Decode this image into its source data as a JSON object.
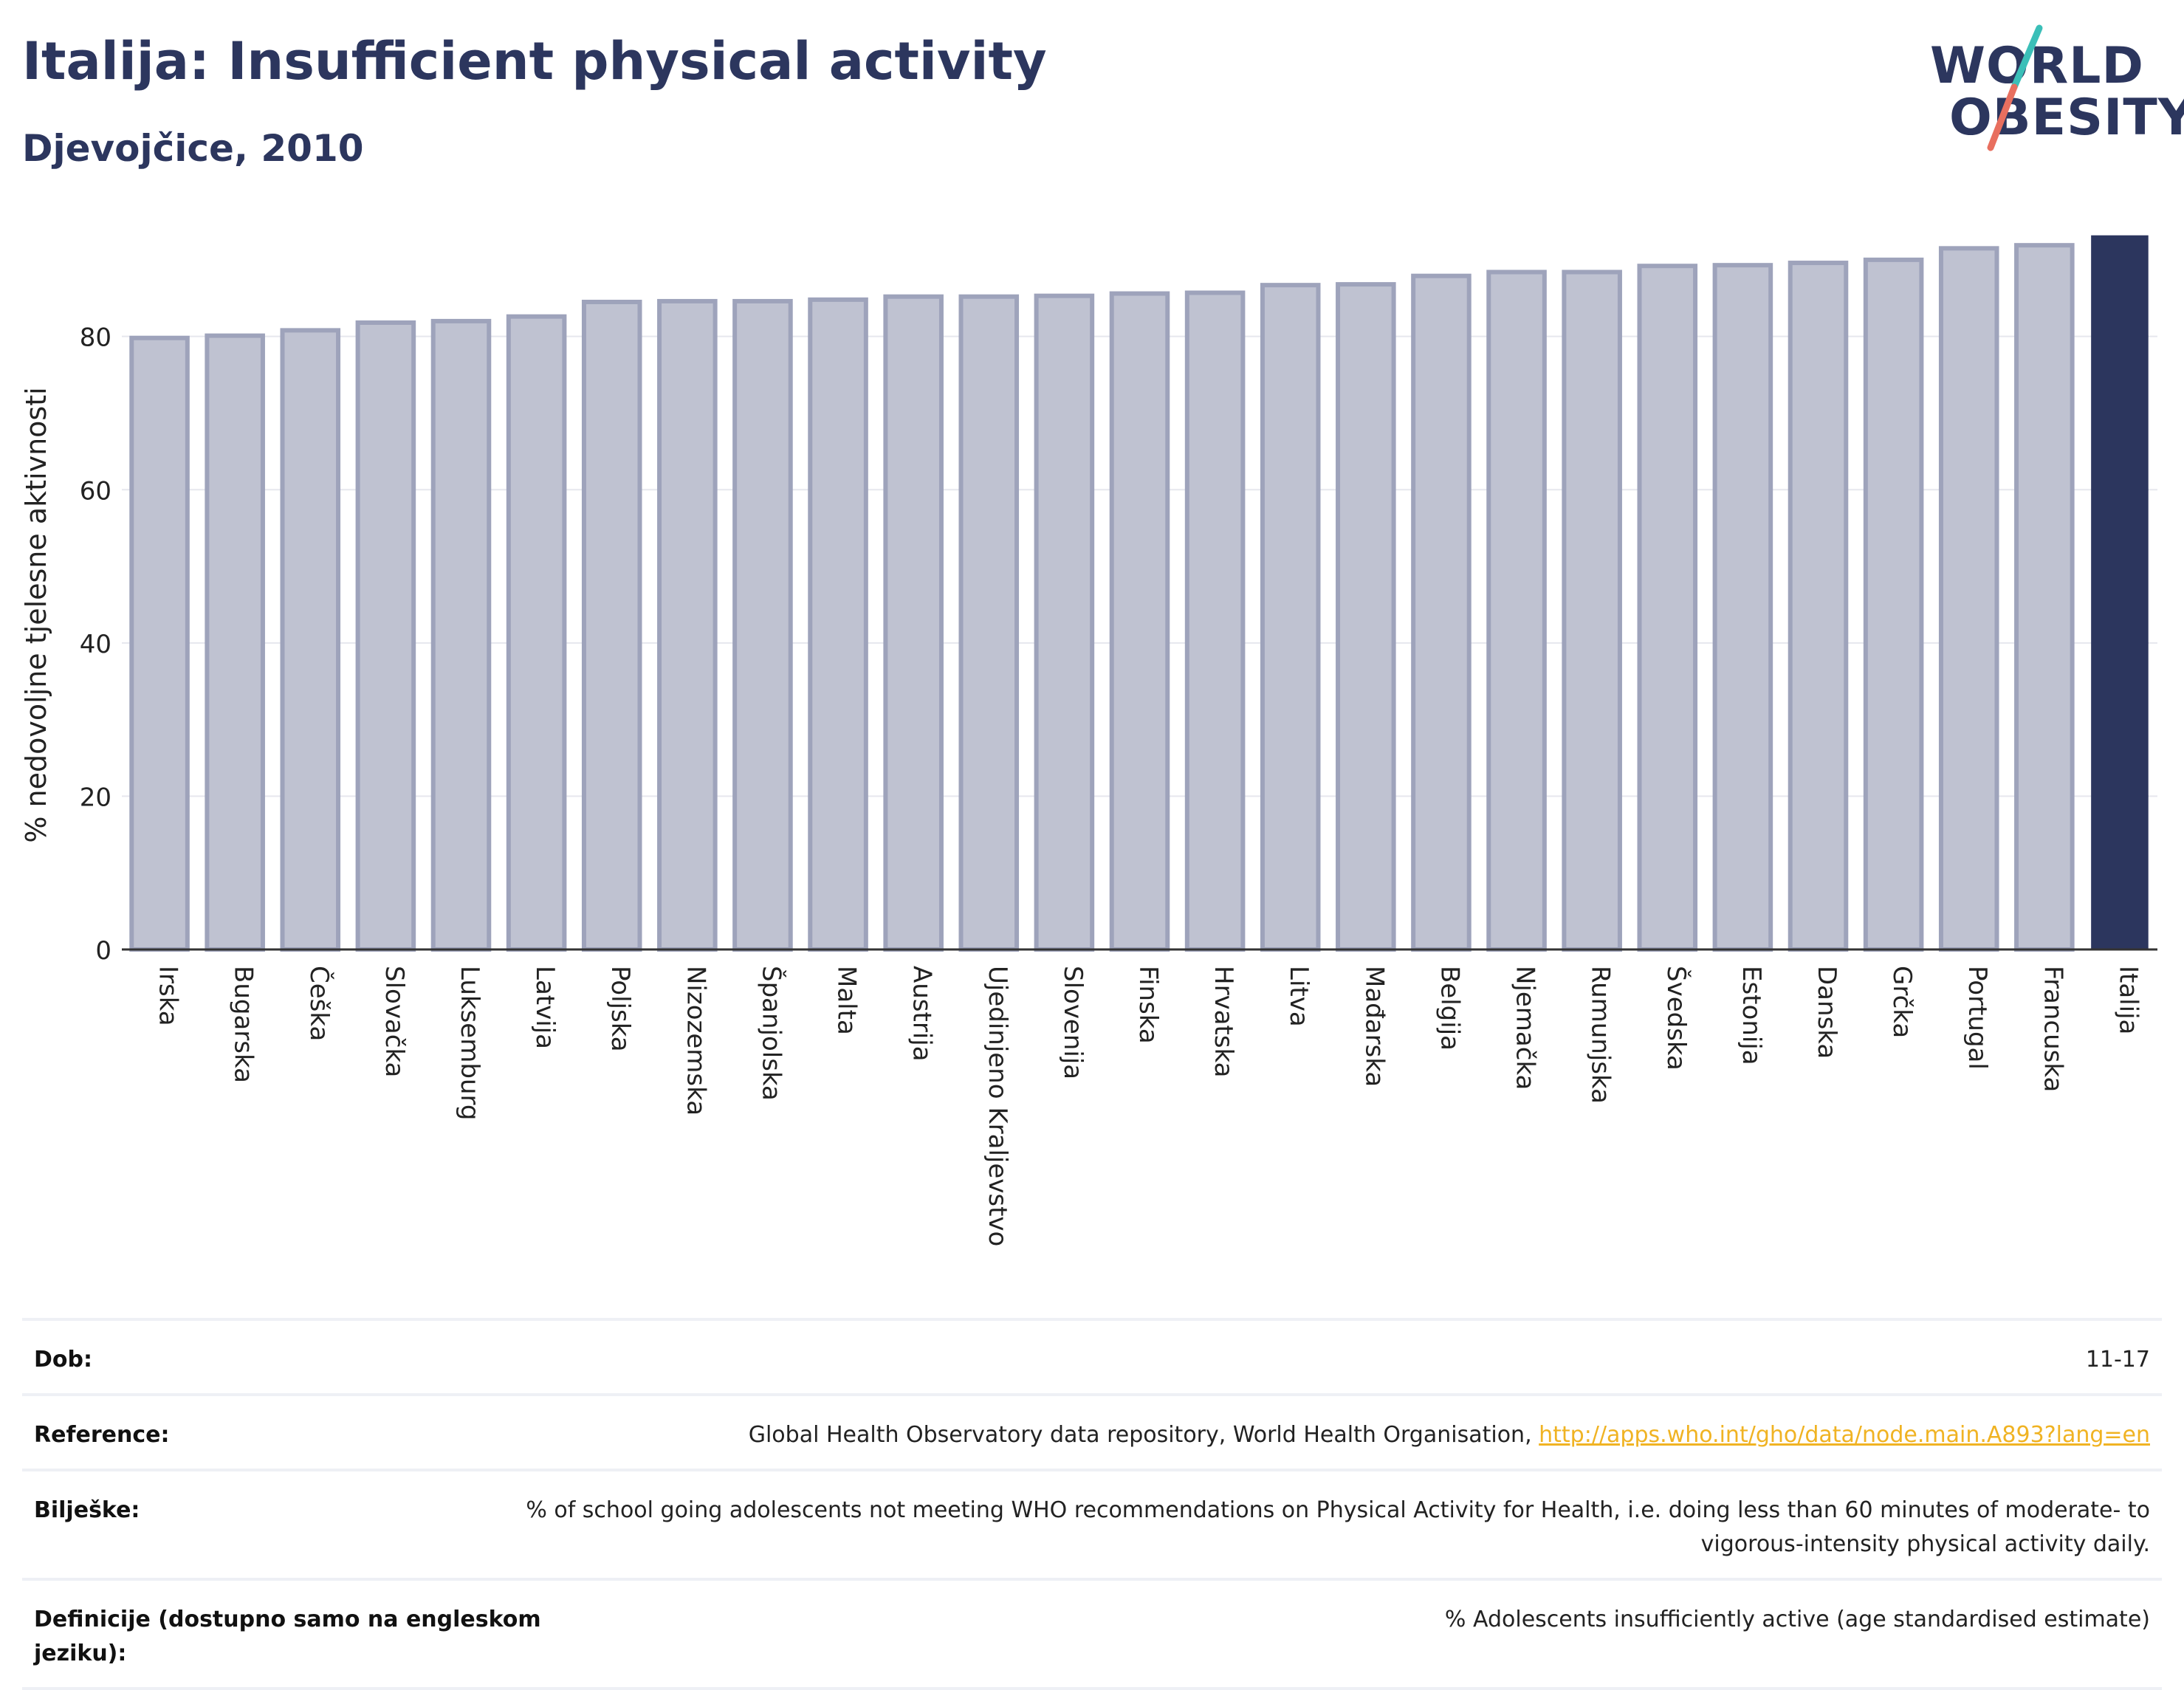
{
  "header": {
    "title": "Italija: Insufficient physical activity",
    "subtitle": "Djevojčice, 2010"
  },
  "logo": {
    "line1": "WORLD",
    "line2": "OBESITY"
  },
  "colors": {
    "highlight_bar": "#2c365e",
    "other_bar_fill": "#bfc2d1",
    "other_bar_stroke": "#9ea3bb",
    "title": "#2c365e",
    "logo_slash_top": "#3bbfb8",
    "logo_slash_bottom": "#e86f5f",
    "link": "#f0b323"
  },
  "chart_data": {
    "type": "bar",
    "ylabel": "% nedovoljne tjelesne aktivnosti",
    "ylim": [
      0,
      95
    ],
    "yticks": [
      0,
      20,
      40,
      60,
      80
    ],
    "grid": true,
    "highlight": "Italija",
    "categories": [
      "Irska",
      "Bugarska",
      "Češka",
      "Slovačka",
      "Luksemburg",
      "Latvija",
      "Poljska",
      "Nizozemska",
      "Španjolska",
      "Malta",
      "Austrija",
      "Ujedinjeno Kraljevstvo",
      "Slovenija",
      "Finska",
      "Hrvatska",
      "Litva",
      "Mađarska",
      "Belgija",
      "Njemačka",
      "Rumunjska",
      "Švedska",
      "Estonija",
      "Danska",
      "Grčka",
      "Portugal",
      "Francuska",
      "Italija"
    ],
    "values": [
      79.8,
      80.1,
      80.8,
      81.8,
      82.0,
      82.6,
      84.5,
      84.6,
      84.6,
      84.8,
      85.2,
      85.2,
      85.3,
      85.6,
      85.7,
      86.7,
      86.8,
      87.9,
      88.4,
      88.4,
      89.2,
      89.3,
      89.6,
      90.0,
      91.5,
      91.9,
      93.1
    ]
  },
  "meta": {
    "rows": [
      {
        "label": "Dob:",
        "value": "11-17"
      },
      {
        "label": "Reference:",
        "value": "Global Health Observatory data repository, World Health Organisation, ",
        "link": "http://apps.who.int/gho/data/node.main.A893?lang=en"
      },
      {
        "label": "Bilješke:",
        "value": "% of school going adolescents not meeting WHO recommendations on Physical Activity for Health, i.e. doing less than 60 minutes of moderate- to vigorous-intensity physical activity daily."
      },
      {
        "label": "Definicije (dostupno samo na engleskom jeziku):",
        "value": "% Adolescents insufficiently active (age standardised estimate)"
      }
    ]
  }
}
